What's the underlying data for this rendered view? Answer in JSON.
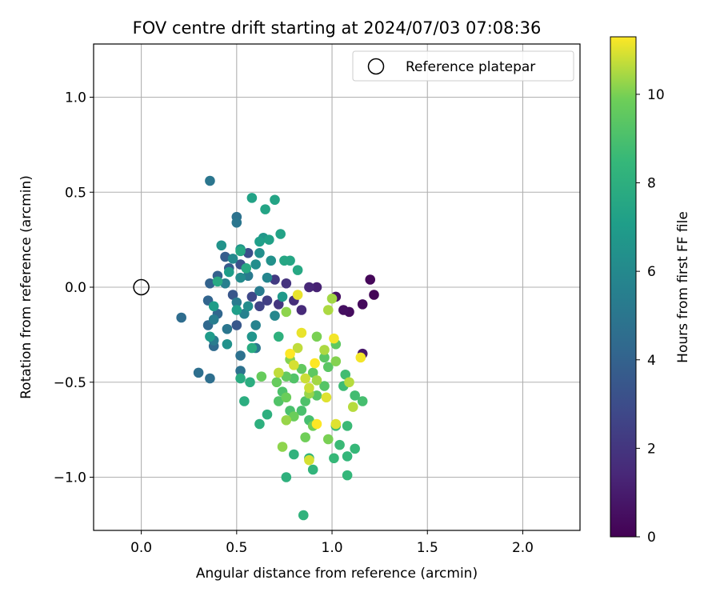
{
  "chart_data": {
    "type": "scatter",
    "title": "FOV centre drift starting at 2024/07/03 07:08:36",
    "xlabel": "Angular distance from reference (arcmin)",
    "ylabel": "Rotation from reference (arcmin)",
    "xlim": [
      -0.25,
      2.3
    ],
    "ylim": [
      -1.28,
      1.28
    ],
    "xticks": [
      0.0,
      0.5,
      1.0,
      1.5,
      2.0
    ],
    "xtick_labels": [
      "0.0",
      "0.5",
      "1.0",
      "1.5",
      "2.0"
    ],
    "yticks": [
      1.0,
      0.5,
      0.0,
      -0.5,
      -1.0
    ],
    "ytick_labels": [
      "1.0",
      "0.5",
      "0.0",
      "−0.5",
      "−1.0"
    ],
    "grid": true,
    "legend": {
      "position": "top-right",
      "entries": [
        "Reference platepar"
      ]
    },
    "reference_point": {
      "x": 0.0,
      "y": 0.0
    },
    "colorbar": {
      "label": "Hours from first FF file",
      "colormap": "viridis",
      "range": [
        0,
        11.3
      ],
      "ticks": [
        0,
        2,
        4,
        6,
        8,
        10
      ],
      "tick_labels": [
        "0",
        "2",
        "4",
        "6",
        "8",
        "10"
      ]
    },
    "points": [
      [
        1.22,
        -0.04,
        0.1
      ],
      [
        1.2,
        0.04,
        0.2
      ],
      [
        1.16,
        -0.09,
        0.3
      ],
      [
        1.09,
        -0.13,
        0.4
      ],
      [
        1.06,
        -0.12,
        0.5
      ],
      [
        1.02,
        -0.05,
        0.6
      ],
      [
        1.16,
        -0.35,
        0.8
      ],
      [
        0.92,
        0.0,
        1.2
      ],
      [
        0.88,
        0.0,
        1.4
      ],
      [
        0.84,
        -0.12,
        1.5
      ],
      [
        0.8,
        -0.07,
        1.7
      ],
      [
        0.76,
        0.02,
        1.9
      ],
      [
        0.72,
        -0.09,
        2.0
      ],
      [
        0.7,
        0.04,
        2.2
      ],
      [
        0.66,
        -0.07,
        2.4
      ],
      [
        0.62,
        -0.1,
        2.6
      ],
      [
        0.58,
        -0.05,
        2.8
      ],
      [
        0.56,
        0.18,
        3.0
      ],
      [
        0.52,
        0.12,
        3.2
      ],
      [
        0.48,
        -0.04,
        3.4
      ],
      [
        0.5,
        -0.2,
        3.5
      ],
      [
        0.46,
        0.1,
        3.6
      ],
      [
        0.44,
        0.16,
        3.8
      ],
      [
        0.4,
        0.06,
        3.9
      ],
      [
        0.36,
        0.02,
        4.0
      ],
      [
        0.35,
        -0.07,
        4.1
      ],
      [
        0.4,
        -0.14,
        4.2
      ],
      [
        0.35,
        -0.2,
        4.3
      ],
      [
        0.38,
        -0.31,
        4.4
      ],
      [
        0.21,
        -0.16,
        4.5
      ],
      [
        0.3,
        -0.45,
        4.6
      ],
      [
        0.36,
        -0.48,
        4.6
      ],
      [
        0.52,
        -0.36,
        4.7
      ],
      [
        0.52,
        -0.44,
        4.8
      ],
      [
        0.5,
        0.37,
        4.8
      ],
      [
        0.5,
        0.34,
        5.0
      ],
      [
        0.36,
        0.56,
        5.0
      ],
      [
        0.45,
        -0.22,
        5.0
      ],
      [
        0.6,
        -0.32,
        5.1
      ],
      [
        0.5,
        -0.08,
        5.2
      ],
      [
        0.56,
        0.06,
        5.2
      ],
      [
        0.62,
        -0.02,
        5.3
      ],
      [
        0.38,
        -0.28,
        5.3
      ],
      [
        0.38,
        -0.17,
        5.4
      ],
      [
        0.44,
        0.02,
        5.5
      ],
      [
        0.54,
        -0.14,
        5.6
      ],
      [
        0.6,
        -0.2,
        5.7
      ],
      [
        0.66,
        0.05,
        5.8
      ],
      [
        0.7,
        -0.15,
        5.9
      ],
      [
        0.48,
        0.15,
        6.0
      ],
      [
        0.52,
        0.05,
        6.1
      ],
      [
        0.6,
        0.12,
        6.2
      ],
      [
        0.56,
        -0.1,
        6.2
      ],
      [
        0.62,
        0.18,
        6.3
      ],
      [
        0.68,
        0.14,
        6.4
      ],
      [
        0.45,
        -0.3,
        6.4
      ],
      [
        0.42,
        0.22,
        6.5
      ],
      [
        0.52,
        0.2,
        6.6
      ],
      [
        0.58,
        -0.26,
        6.6
      ],
      [
        0.64,
        0.26,
        6.7
      ],
      [
        0.74,
        -0.05,
        6.8
      ],
      [
        0.36,
        -0.26,
        6.9
      ],
      [
        0.38,
        -0.1,
        7.0
      ],
      [
        0.46,
        0.08,
        7.0
      ],
      [
        0.5,
        -0.12,
        7.1
      ],
      [
        0.62,
        0.24,
        7.1
      ],
      [
        0.67,
        0.25,
        7.2
      ],
      [
        0.73,
        0.28,
        7.3
      ],
      [
        0.58,
        0.47,
        7.3
      ],
      [
        0.7,
        0.46,
        7.4
      ],
      [
        0.65,
        0.41,
        7.4
      ],
      [
        0.75,
        0.14,
        7.5
      ],
      [
        0.78,
        0.14,
        7.5
      ],
      [
        0.82,
        0.09,
        7.6
      ],
      [
        0.52,
        0.19,
        7.6
      ],
      [
        0.55,
        0.1,
        7.7
      ],
      [
        0.4,
        0.03,
        7.7
      ],
      [
        0.58,
        -0.32,
        7.8
      ],
      [
        0.52,
        -0.48,
        7.8
      ],
      [
        0.57,
        -0.5,
        7.9
      ],
      [
        0.54,
        -0.6,
        7.9
      ],
      [
        0.66,
        -0.67,
        8.0
      ],
      [
        0.62,
        -0.72,
        8.0
      ],
      [
        0.72,
        -0.26,
        8.1
      ],
      [
        0.76,
        -1.0,
        8.1
      ],
      [
        0.85,
        -1.2,
        8.2
      ],
      [
        0.8,
        -0.88,
        8.2
      ],
      [
        0.9,
        -0.96,
        8.3
      ],
      [
        0.88,
        -0.9,
        8.3
      ],
      [
        1.08,
        -0.89,
        8.4
      ],
      [
        1.08,
        -0.99,
        8.4
      ],
      [
        1.01,
        -0.9,
        8.5
      ],
      [
        1.12,
        -0.85,
        8.5
      ],
      [
        1.04,
        -0.83,
        8.6
      ],
      [
        1.08,
        -0.73,
        8.6
      ],
      [
        1.02,
        -0.73,
        8.7
      ],
      [
        1.06,
        -0.52,
        8.7
      ],
      [
        1.07,
        -0.46,
        8.8
      ],
      [
        1.12,
        -0.57,
        8.8
      ],
      [
        1.16,
        -0.6,
        8.9
      ],
      [
        0.88,
        -0.7,
        8.9
      ],
      [
        0.84,
        -0.65,
        9.0
      ],
      [
        0.78,
        -0.65,
        9.0
      ],
      [
        0.86,
        -0.6,
        9.1
      ],
      [
        0.74,
        -0.55,
        9.1
      ],
      [
        0.72,
        -0.6,
        9.2
      ],
      [
        0.8,
        -0.48,
        9.2
      ],
      [
        0.92,
        -0.57,
        9.3
      ],
      [
        0.96,
        -0.52,
        9.3
      ],
      [
        0.98,
        -0.42,
        9.4
      ],
      [
        0.96,
        -0.37,
        9.4
      ],
      [
        1.02,
        -0.3,
        9.5
      ],
      [
        0.9,
        -0.45,
        9.5
      ],
      [
        0.84,
        -0.43,
        9.6
      ],
      [
        0.76,
        -0.47,
        9.6
      ],
      [
        0.71,
        -0.5,
        9.7
      ],
      [
        0.63,
        -0.47,
        9.7
      ],
      [
        0.76,
        -0.58,
        9.8
      ],
      [
        0.8,
        -0.68,
        9.8
      ],
      [
        0.86,
        -0.79,
        9.9
      ],
      [
        0.9,
        -0.73,
        9.9
      ],
      [
        0.98,
        -0.8,
        10.0
      ],
      [
        0.92,
        -0.26,
        10.0
      ],
      [
        1.02,
        -0.39,
        10.1
      ],
      [
        0.78,
        -0.38,
        10.1
      ],
      [
        0.76,
        -0.13,
        10.2
      ],
      [
        0.74,
        -0.84,
        10.2
      ],
      [
        0.76,
        -0.7,
        10.3
      ],
      [
        0.88,
        -0.56,
        10.3
      ],
      [
        0.92,
        -0.49,
        10.4
      ],
      [
        1.0,
        -0.06,
        10.4
      ],
      [
        0.98,
        -0.12,
        10.5
      ],
      [
        0.96,
        -0.33,
        10.5
      ],
      [
        1.09,
        -0.5,
        10.6
      ],
      [
        1.11,
        -0.63,
        10.6
      ],
      [
        0.72,
        -0.45,
        10.7
      ],
      [
        0.82,
        -0.32,
        10.7
      ],
      [
        0.86,
        -0.48,
        10.8
      ],
      [
        0.88,
        -0.53,
        10.8
      ],
      [
        0.8,
        -0.41,
        10.9
      ],
      [
        0.88,
        -0.91,
        10.9
      ],
      [
        0.97,
        -0.58,
        11.0
      ],
      [
        1.02,
        -0.72,
        11.0
      ],
      [
        0.84,
        -0.24,
        11.1
      ],
      [
        0.82,
        -0.04,
        11.1
      ],
      [
        1.01,
        -0.27,
        11.2
      ],
      [
        1.15,
        -0.37,
        11.2
      ],
      [
        0.92,
        -0.72,
        11.3
      ],
      [
        0.78,
        -0.35,
        11.3
      ],
      [
        0.91,
        -0.4,
        11.3
      ]
    ]
  }
}
